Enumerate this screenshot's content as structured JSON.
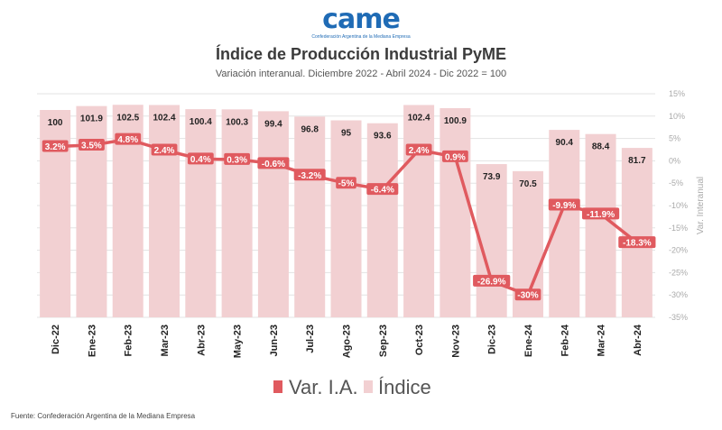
{
  "logo": {
    "mark": "came",
    "subtitle": "Confederación Argentina de la Mediana Empresa"
  },
  "title": "Índice de Producción Industrial PyME",
  "subtitle": "Variación interanual. Diciembre 2022 - Abril 2024 - Dic 2022 = 100",
  "source": "Fuente: Confederación Argentina de la Mediana Empresa",
  "colors": {
    "bar": "#f2d0d2",
    "line": "#e05a5f",
    "grid": "#e3e3e3",
    "tick": "#aaaaaa"
  },
  "chart_data": {
    "type": "bar+line",
    "categories": [
      "Dic-22",
      "Ene-23",
      "Feb-23",
      "Mar-23",
      "Abr-23",
      "May-23",
      "Jun-23",
      "Jul-23",
      "Ago-23",
      "Sep-23",
      "Oct-23",
      "Nov-23",
      "Dic-23",
      "Ene-24",
      "Feb-24",
      "Mar-24",
      "Abr-24"
    ],
    "series": [
      {
        "name": "Índice",
        "type": "bar",
        "values": [
          100,
          101.9,
          102.5,
          102.4,
          100.4,
          100.3,
          99.4,
          96.8,
          95,
          93.6,
          102.4,
          100.9,
          73.9,
          70.5,
          90.4,
          88.4,
          81.7
        ],
        "labels": [
          "100",
          "101.9",
          "102.5",
          "102.4",
          "100.4",
          "100.3",
          "99.4",
          "96.8",
          "95",
          "93.6",
          "102.4",
          "100.9",
          "73.9",
          "70.5",
          "90.4",
          "88.4",
          "81.7"
        ]
      },
      {
        "name": "Var. I.A.",
        "type": "line",
        "axis": "right",
        "values": [
          3.2,
          3.5,
          4.8,
          2.4,
          0.4,
          0.3,
          -0.6,
          -3.2,
          -5,
          -6.4,
          2.4,
          0.9,
          -26.9,
          -30,
          -9.9,
          -11.9,
          -18.3
        ],
        "labels": [
          "3.2%",
          "3.5%",
          "4.8%",
          "2.4%",
          "0.4%",
          "0.3%",
          "-0.6%",
          "-3.2%",
          "-5%",
          "-6.4%",
          "2.4%",
          "0.9%",
          "-26.9%",
          "-30%",
          "-9.9%",
          "-11.9%",
          "-18.3%"
        ]
      }
    ],
    "y2label": "Var. Interanual",
    "y2lim": [
      -35,
      15
    ],
    "y2ticks": [
      15,
      10,
      5,
      0,
      -5,
      -10,
      -15,
      -20,
      -25,
      -30,
      -35
    ],
    "y2tick_labels": [
      "15%",
      "10%",
      "5%",
      "0%",
      "-5%",
      "-10%",
      "-15%",
      "-20%",
      "-25%",
      "-30%",
      "-35%"
    ],
    "legend": {
      "position": "bottom",
      "entries": [
        "Var. I.A.",
        "Índice"
      ]
    },
    "grid": true
  }
}
